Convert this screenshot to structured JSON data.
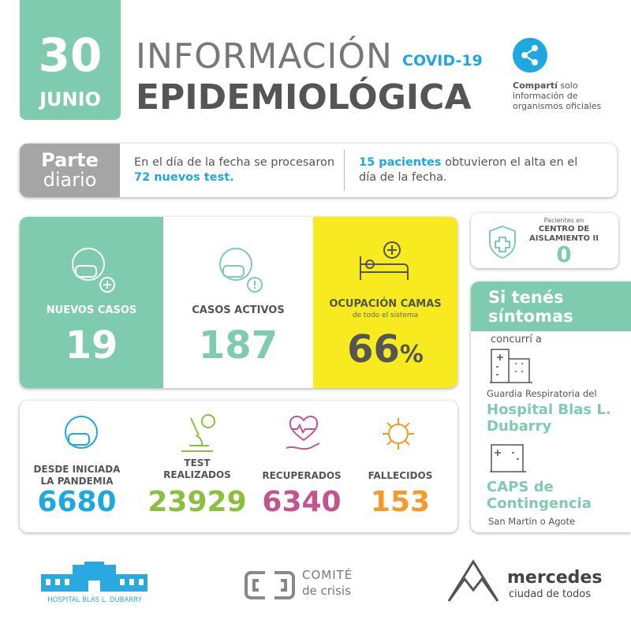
{
  "header": {
    "day": 30,
    "month": "JUNIO",
    "title_line1": "INFORMACIÓN",
    "tag": "COVID-19",
    "title_line2": "EPIDEMIOLÓGICA",
    "share": {
      "bold": "Compartí",
      "text": "solo información de organismos oficiales"
    }
  },
  "parte": {
    "label1": "Parte",
    "label2": "diario",
    "tests": {
      "before": "En el día de la fecha se procesaron",
      "highlight": "72 nuevos test."
    },
    "altas": {
      "highlight": "15 pacientes",
      "after": "obtuvieron el alta en el día de la fecha."
    }
  },
  "stats": [
    {
      "label": "NUEVOS  CASOS",
      "value": 19
    },
    {
      "label": "CASOS ACTIVOS",
      "value": 187
    },
    {
      "label": "OCUPACIÓN CAMAS",
      "sublabel": "de todo el sistema",
      "value": 66,
      "unit": "%"
    }
  ],
  "centro": {
    "caption": "Pacientes en",
    "label": "CENTRO DE AISLAMIENTO II",
    "value": 0
  },
  "totals": [
    {
      "label": "DESDE INICIADA LA PANDEMIA",
      "value": 6680
    },
    {
      "label": "TEST REALIZADOS",
      "value": 23929
    },
    {
      "label": "RECUPERADOS",
      "value": 6340
    },
    {
      "label": "FALLECIDOS",
      "value": 153
    }
  ],
  "sintomas": {
    "title": "Si tenés síntomas",
    "intro": "concurrí a",
    "places": [
      {
        "caption": "Guardia Respiratoria del",
        "name": "Hospital Blas L. Dubarry"
      },
      {
        "name": "CAPS de Contingencia",
        "caption": "San Martín o Agote"
      }
    ]
  },
  "footer": {
    "hospital": "HOSPITAL BLAS L. DUBARRY",
    "comite_top": "COMITÉ",
    "comite_bottom": "de crisis",
    "city_top": "mercedes",
    "city_bottom": "ciudad de todos"
  }
}
